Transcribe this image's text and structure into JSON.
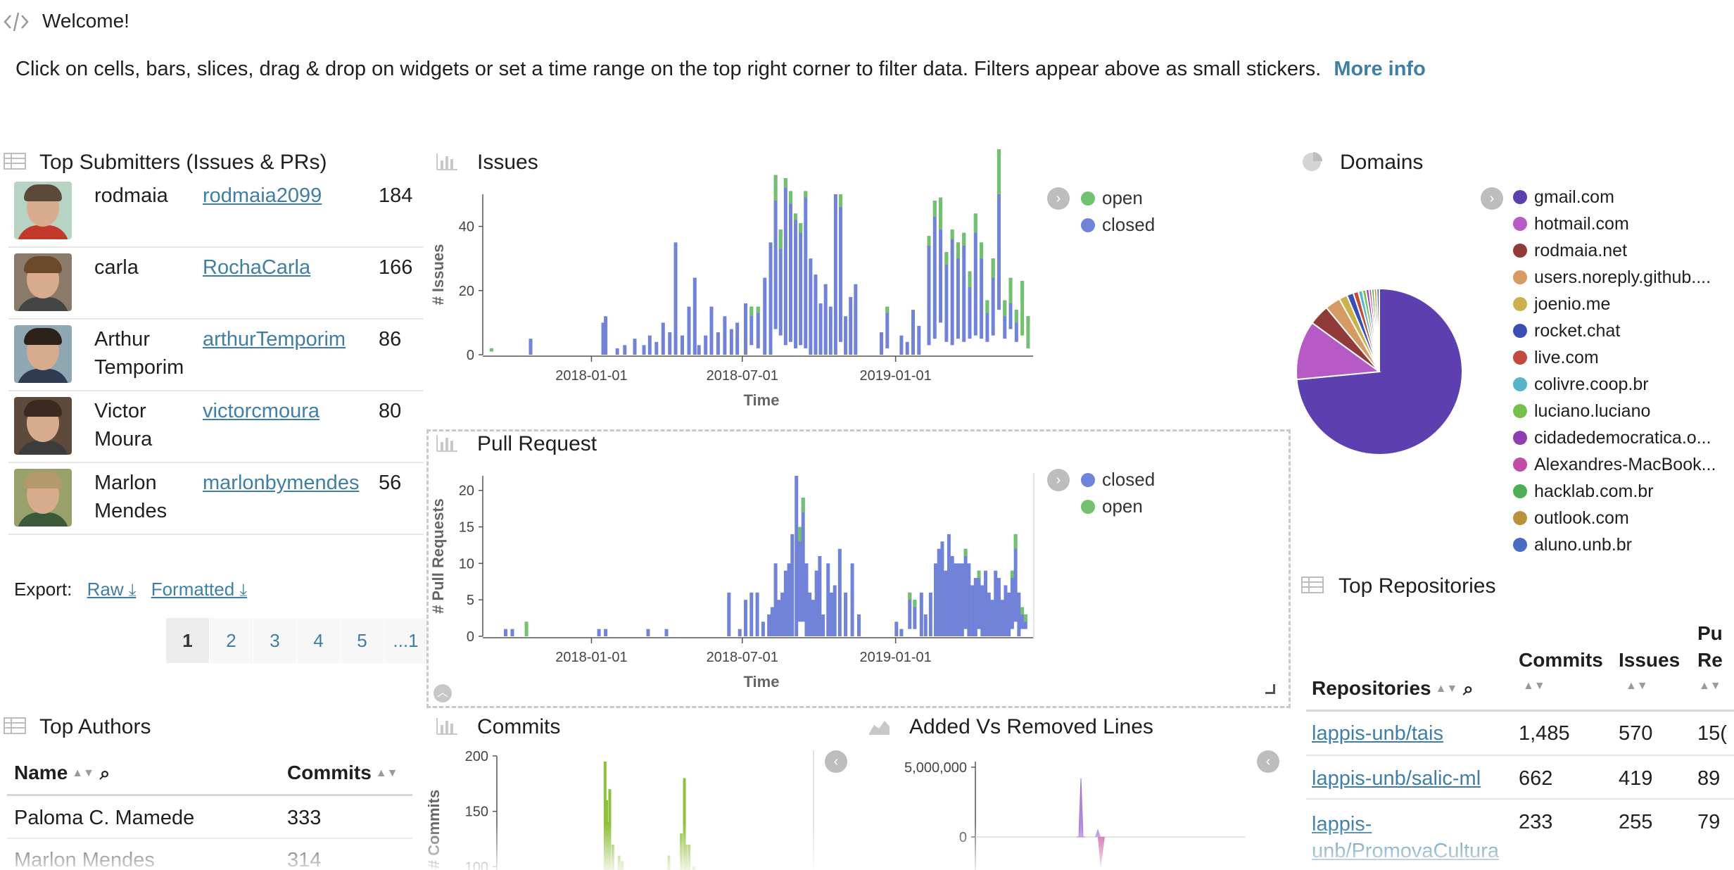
{
  "header": {
    "welcome": "Welcome!",
    "intro": "Click on cells, bars, slices, drag & drop on widgets or set a time range on the top right corner to filter data. Filters appear above as small stickers.",
    "more_info": "More info"
  },
  "submitters": {
    "title": "Top Submitters (Issues & PRs)",
    "rows": [
      {
        "name": "rodmaia",
        "login": "rodmaia2099",
        "count": "184"
      },
      {
        "name": "carla",
        "login": "RochaCarla",
        "count": "166"
      },
      {
        "name": "Arthur Temporim",
        "login": "arthurTemporim",
        "count": "86"
      },
      {
        "name": "Victor Moura",
        "login": "victorcmoura",
        "count": "80"
      },
      {
        "name": "Marlon Mendes",
        "login": "marlonbymendes",
        "count": "56"
      }
    ],
    "export_label": "Export:",
    "export_raw": "Raw",
    "export_formatted": "Formatted",
    "pages": [
      "1",
      "2",
      "3",
      "4",
      "5",
      "...1"
    ]
  },
  "issues_chart": {
    "title": "Issues",
    "ylabel": "# Issues",
    "xlabel": "Time",
    "yticks": [
      "0",
      "20",
      "40"
    ],
    "xticks": [
      "2018-01-01",
      "2018-07-01",
      "2019-01-01"
    ],
    "legend": [
      "open",
      "closed"
    ]
  },
  "pr_chart": {
    "title": "Pull Request",
    "ylabel": "# Pull Requests",
    "xlabel": "Time",
    "yticks": [
      "0",
      "5",
      "10",
      "15",
      "20"
    ],
    "xticks": [
      "2018-01-01",
      "2018-07-01",
      "2019-01-01"
    ],
    "legend": [
      "closed",
      "open"
    ]
  },
  "domains": {
    "title": "Domains",
    "items": [
      "gmail.com",
      "hotmail.com",
      "rodmaia.net",
      "users.noreply.github....",
      "joenio.me",
      "rocket.chat",
      "live.com",
      "colivre.coop.br",
      "luciano.luciano",
      "cidadedemocratica.o...",
      "Alexandres-MacBook...",
      "hacklab.com.br",
      "outlook.com",
      "aluno.unb.br"
    ]
  },
  "repositories": {
    "title": "Top Repositories",
    "headers": {
      "repo": "Repositories",
      "commits": "Commits",
      "issues": "Issues",
      "pr1": "Pu",
      "pr2": "Re"
    },
    "rows": [
      {
        "repo": "lappis-unb/tais",
        "commits": "1,485",
        "issues": "570",
        "pr": "15("
      },
      {
        "repo": "lappis-unb/salic-ml",
        "commits": "662",
        "issues": "419",
        "pr": "89"
      },
      {
        "repo1": "lappis-",
        "repo2": "unb/PromovaCultura",
        "commits": "233",
        "issues": "255",
        "pr": "79"
      }
    ]
  },
  "authors": {
    "title": "Top Authors",
    "headers": {
      "name": "Name",
      "commits": "Commits"
    },
    "rows": [
      {
        "name": "Paloma C. Mamede",
        "commits": "333"
      },
      {
        "name": "Marlon Mendes",
        "commits": "314"
      }
    ]
  },
  "commits_chart": {
    "title": "Commits",
    "ylabel": "# Commits",
    "yticks": [
      "100",
      "150",
      "200"
    ]
  },
  "lines_chart": {
    "title": "Added Vs Removed Lines",
    "yticks": [
      "0",
      "5,000,000"
    ]
  },
  "colors": {
    "closed": "#7183d8",
    "open": "#72c16f",
    "commits": "#8fbf3d",
    "link": "#3f7fa6"
  },
  "chart_data": [
    {
      "type": "bar",
      "title": "Issues",
      "xlabel": "Time",
      "ylabel": "# Issues",
      "x_range": [
        "2017-09-01",
        "2019-06-15"
      ],
      "ylim": [
        0,
        50
      ],
      "series": [
        {
          "name": "closed",
          "values": [
            [
              1,
              "2017-09-03"
            ],
            [
              5,
              "2017-10-20"
            ],
            [
              10,
              "2018-01-15"
            ],
            [
              12,
              "2018-01-18"
            ],
            [
              2,
              "2018-02-01"
            ],
            [
              3,
              "2018-02-10"
            ],
            [
              5,
              "2018-02-22"
            ],
            [
              3,
              "2018-03-05"
            ],
            [
              6,
              "2018-03-12"
            ],
            [
              4,
              "2018-03-20"
            ],
            [
              10,
              "2018-03-28"
            ],
            [
              7,
              "2018-04-05"
            ],
            [
              35,
              "2018-04-12"
            ],
            [
              6,
              "2018-04-20"
            ],
            [
              15,
              "2018-04-28"
            ],
            [
              24,
              "2018-05-05"
            ],
            [
              3,
              "2018-05-10"
            ],
            [
              6,
              "2018-05-18"
            ],
            [
              15,
              "2018-05-25"
            ],
            [
              7,
              "2018-06-02"
            ],
            [
              12,
              "2018-06-10"
            ],
            [
              8,
              "2018-06-18"
            ],
            [
              10,
              "2018-06-25"
            ],
            [
              16,
              "2018-07-05"
            ],
            [
              12,
              "2018-07-12"
            ],
            [
              13,
              "2018-07-20"
            ],
            [
              24,
              "2018-07-28"
            ],
            [
              35,
              "2018-08-04"
            ],
            [
              48,
              "2018-08-10"
            ],
            [
              33,
              "2018-08-16"
            ],
            [
              52,
              "2018-08-22"
            ],
            [
              47,
              "2018-08-28"
            ],
            [
              42,
              "2018-09-03"
            ],
            [
              38,
              "2018-09-09"
            ],
            [
              49,
              "2018-09-15"
            ],
            [
              30,
              "2018-09-21"
            ],
            [
              25,
              "2018-09-27"
            ],
            [
              16,
              "2018-10-03"
            ],
            [
              22,
              "2018-10-09"
            ],
            [
              15,
              "2018-10-15"
            ],
            [
              50,
              "2018-10-21"
            ],
            [
              46,
              "2018-10-27"
            ],
            [
              12,
              "2018-11-02"
            ],
            [
              18,
              "2018-11-08"
            ],
            [
              22,
              "2018-11-14"
            ],
            [
              7,
              "2018-12-15"
            ],
            [
              13,
              "2018-12-22"
            ],
            [
              6,
              "2019-01-08"
            ],
            [
              4,
              "2019-01-15"
            ],
            [
              14,
              "2019-01-22"
            ],
            [
              9,
              "2019-01-29"
            ],
            [
              34,
              "2019-02-10"
            ],
            [
              43,
              "2019-02-17"
            ],
            [
              39,
              "2019-02-24"
            ],
            [
              28,
              "2019-03-03"
            ],
            [
              36,
              "2019-03-10"
            ],
            [
              30,
              "2019-03-17"
            ],
            [
              34,
              "2019-03-24"
            ],
            [
              21,
              "2019-03-31"
            ],
            [
              38,
              "2019-04-07"
            ],
            [
              30,
              "2019-04-14"
            ],
            [
              13,
              "2019-04-21"
            ],
            [
              24,
              "2019-04-28"
            ],
            [
              50,
              "2019-05-05"
            ],
            [
              12,
              "2019-05-12"
            ],
            [
              16,
              "2019-05-19"
            ],
            [
              10,
              "2019-05-26"
            ],
            [
              6,
              "2019-06-02"
            ],
            [
              2,
              "2019-06-09"
            ]
          ]
        },
        {
          "name": "open",
          "values": [
            [
              1,
              "2017-09-03"
            ],
            [
              3,
              "2018-07-12"
            ],
            [
              2,
              "2018-07-20"
            ],
            [
              8,
              "2018-08-10"
            ],
            [
              6,
              "2018-08-16"
            ],
            [
              3,
              "2018-08-22"
            ],
            [
              4,
              "2018-08-28"
            ],
            [
              2,
              "2018-09-03"
            ],
            [
              3,
              "2018-09-09"
            ],
            [
              2,
              "2018-09-15"
            ],
            [
              4,
              "2018-10-27"
            ],
            [
              2,
              "2018-12-22"
            ],
            [
              3,
              "2019-02-10"
            ],
            [
              5,
              "2019-02-17"
            ],
            [
              10,
              "2019-02-24"
            ],
            [
              4,
              "2019-03-03"
            ],
            [
              3,
              "2019-03-10"
            ],
            [
              5,
              "2019-03-17"
            ],
            [
              4,
              "2019-03-24"
            ],
            [
              5,
              "2019-03-31"
            ],
            [
              6,
              "2019-04-07"
            ],
            [
              5,
              "2019-04-14"
            ],
            [
              4,
              "2019-04-21"
            ],
            [
              6,
              "2019-04-28"
            ],
            [
              14,
              "2019-05-05"
            ],
            [
              5,
              "2019-05-12"
            ],
            [
              8,
              "2019-05-19"
            ],
            [
              4,
              "2019-05-26"
            ],
            [
              17,
              "2019-06-02"
            ],
            [
              10,
              "2019-06-09"
            ]
          ]
        }
      ]
    },
    {
      "type": "bar",
      "title": "Pull Request",
      "xlabel": "Time",
      "ylabel": "# Pull Requests",
      "x_range": [
        "2017-09-01",
        "2019-06-15"
      ],
      "ylim": [
        0,
        22
      ],
      "series": [
        {
          "name": "closed",
          "values": [
            [
              1,
              "2017-09-20"
            ],
            [
              1,
              "2017-09-28"
            ],
            [
              1,
              "2018-01-10"
            ],
            [
              1,
              "2018-01-18"
            ],
            [
              1,
              "2018-03-10"
            ],
            [
              1,
              "2018-04-01"
            ],
            [
              6,
              "2018-06-15"
            ],
            [
              1,
              "2018-06-28"
            ],
            [
              5,
              "2018-07-05"
            ],
            [
              6,
              "2018-07-12"
            ],
            [
              6,
              "2018-07-19"
            ],
            [
              2,
              "2018-07-26"
            ],
            [
              3,
              "2018-08-02"
            ],
            [
              4,
              "2018-08-06"
            ],
            [
              10,
              "2018-08-10"
            ],
            [
              5,
              "2018-08-14"
            ],
            [
              6,
              "2018-08-18"
            ],
            [
              9,
              "2018-08-22"
            ],
            [
              10,
              "2018-08-26"
            ],
            [
              14,
              "2018-08-30"
            ],
            [
              22,
              "2018-09-04"
            ],
            [
              13,
              "2018-09-08"
            ],
            [
              17,
              "2018-09-12"
            ],
            [
              10,
              "2018-09-16"
            ],
            [
              6,
              "2018-09-20"
            ],
            [
              5,
              "2018-09-24"
            ],
            [
              9,
              "2018-09-28"
            ],
            [
              11,
              "2018-10-02"
            ],
            [
              3,
              "2018-10-06"
            ],
            [
              10,
              "2018-10-12"
            ],
            [
              6,
              "2018-10-16"
            ],
            [
              7,
              "2018-10-20"
            ],
            [
              12,
              "2018-10-26"
            ],
            [
              6,
              "2018-11-02"
            ],
            [
              10,
              "2018-11-10"
            ],
            [
              3,
              "2018-11-18"
            ],
            [
              2,
              "2019-01-02"
            ],
            [
              1,
              "2019-01-08"
            ],
            [
              5,
              "2019-01-18"
            ],
            [
              4,
              "2019-01-24"
            ],
            [
              6,
              "2019-02-01"
            ],
            [
              3,
              "2019-02-06"
            ],
            [
              6,
              "2019-02-12"
            ],
            [
              10,
              "2019-02-18"
            ],
            [
              12,
              "2019-02-22"
            ],
            [
              13,
              "2019-02-26"
            ],
            [
              9,
              "2019-03-02"
            ],
            [
              14,
              "2019-03-06"
            ],
            [
              11,
              "2019-03-10"
            ],
            [
              10,
              "2019-03-14"
            ],
            [
              10,
              "2019-03-18"
            ],
            [
              10,
              "2019-03-22"
            ],
            [
              11,
              "2019-03-26"
            ],
            [
              10,
              "2019-03-30"
            ],
            [
              7,
              "2019-04-03"
            ],
            [
              8,
              "2019-04-07"
            ],
            [
              8,
              "2019-04-11"
            ],
            [
              7,
              "2019-04-15"
            ],
            [
              9,
              "2019-04-19"
            ],
            [
              6,
              "2019-04-23"
            ],
            [
              5,
              "2019-04-27"
            ],
            [
              9,
              "2019-05-01"
            ],
            [
              8,
              "2019-05-05"
            ],
            [
              5,
              "2019-05-09"
            ],
            [
              7,
              "2019-05-13"
            ],
            [
              6,
              "2019-05-17"
            ],
            [
              8,
              "2019-05-21"
            ],
            [
              12,
              "2019-05-25"
            ],
            [
              6,
              "2019-05-29"
            ],
            [
              3,
              "2019-06-02"
            ],
            [
              2,
              "2019-06-06"
            ]
          ]
        },
        {
          "name": "open",
          "values": [
            [
              2,
              "2017-10-15"
            ],
            [
              2,
              "2018-09-08"
            ],
            [
              2,
              "2018-09-12"
            ],
            [
              1,
              "2019-01-18"
            ],
            [
              1,
              "2019-01-24"
            ],
            [
              1,
              "2019-03-26"
            ],
            [
              1,
              "2019-04-11"
            ],
            [
              1,
              "2019-05-21"
            ],
            [
              2,
              "2019-05-25"
            ],
            [
              1,
              "2019-06-02"
            ],
            [
              1,
              "2019-06-06"
            ]
          ]
        }
      ]
    },
    {
      "type": "pie",
      "title": "Domains",
      "labels": [
        "gmail.com",
        "hotmail.com",
        "rodmaia.net",
        "users.noreply.github....",
        "joenio.me",
        "rocket.chat",
        "live.com",
        "colivre.coop.br",
        "luciano.luciano",
        "cidadedemocratica.o...",
        "Alexandres-MacBook...",
        "hacklab.com.br",
        "outlook.com",
        "aluno.unb.br"
      ],
      "values": [
        73.5,
        11.5,
        4.0,
        3.0,
        1.6,
        1.3,
        1.0,
        0.8,
        0.7,
        0.6,
        0.5,
        0.5,
        0.5,
        0.5
      ],
      "colors": [
        "#5d3fb0",
        "#b65bc6",
        "#913a3a",
        "#d69a63",
        "#c7b24e",
        "#3a4fb5",
        "#c24b3f",
        "#55b6c6",
        "#79bf4b",
        "#8d3fb0",
        "#c24ba8",
        "#4cae57",
        "#b99240",
        "#4a6bc4"
      ]
    },
    {
      "type": "bar",
      "title": "Commits",
      "ylabel": "# Commits",
      "x": [
        0.615,
        0.62,
        0.625,
        0.63,
        0.64,
        0.65,
        0.66,
        0.665,
        0.67,
        0.675,
        0.68,
        0.69,
        0.72,
        0.78,
        0.82,
        0.86,
        0.87,
        0.875,
        0.88,
        0.885,
        0.89,
        0.9,
        0.91,
        0.95,
        0.96
      ],
      "values": [
        195,
        160,
        140,
        170,
        120,
        95,
        110,
        100,
        105,
        80,
        90,
        70,
        80,
        85,
        110,
        130,
        180,
        120,
        105,
        120,
        90,
        100,
        80,
        75,
        80
      ],
      "ylim": [
        70,
        200
      ]
    },
    {
      "type": "area",
      "title": "Added Vs Removed Lines",
      "series": [
        {
          "name": "added",
          "values_desc": "spike",
          "peak": 4200000
        },
        {
          "name": "removed",
          "peak": -2300000
        }
      ],
      "ylim": [
        -2500000,
        5000000
      ]
    }
  ]
}
